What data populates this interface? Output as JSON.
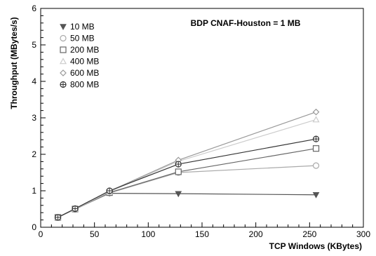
{
  "chart_data": {
    "type": "line",
    "title": "BDP CNAF-Houston = 1 MB",
    "xlabel": "TCP Windows (KBytes)",
    "ylabel": "Throughput (MBytes/s)",
    "xlim": [
      0,
      300
    ],
    "ylim": [
      0,
      6
    ],
    "x_ticks": [
      0,
      50,
      100,
      150,
      200,
      250,
      300
    ],
    "y_ticks": [
      0,
      1,
      2,
      3,
      4,
      5,
      6
    ],
    "grid": false,
    "legend_position": "top-left",
    "series": [
      {
        "name": "10 MB",
        "marker": "triangle-down-filled",
        "color": "#555555",
        "x": [
          16,
          32,
          64,
          128,
          256
        ],
        "y": [
          0.27,
          0.5,
          0.93,
          0.92,
          0.89
        ]
      },
      {
        "name": "50 MB",
        "marker": "circle-open",
        "color": "#aaaaaa",
        "x": [
          16,
          32,
          64,
          128,
          256
        ],
        "y": [
          0.27,
          0.49,
          0.94,
          1.5,
          1.69
        ]
      },
      {
        "name": "200 MB",
        "marker": "square-open",
        "color": "#666666",
        "x": [
          16,
          32,
          64,
          128,
          256
        ],
        "y": [
          0.27,
          0.5,
          0.95,
          1.52,
          2.16
        ]
      },
      {
        "name": "400 MB",
        "marker": "triangle-up-open",
        "color": "#cccccc",
        "x": [
          16,
          32,
          64,
          128,
          256
        ],
        "y": [
          0.27,
          0.5,
          0.97,
          1.81,
          2.95
        ]
      },
      {
        "name": "600 MB",
        "marker": "diamond-open",
        "color": "#999999",
        "x": [
          16,
          32,
          64,
          128,
          256
        ],
        "y": [
          0.27,
          0.51,
          0.99,
          1.84,
          3.16
        ]
      },
      {
        "name": "800 MB",
        "marker": "cross-circle",
        "color": "#333333",
        "x": [
          16,
          32,
          64,
          128,
          256
        ],
        "y": [
          0.27,
          0.51,
          1.0,
          1.73,
          2.42
        ]
      }
    ]
  }
}
